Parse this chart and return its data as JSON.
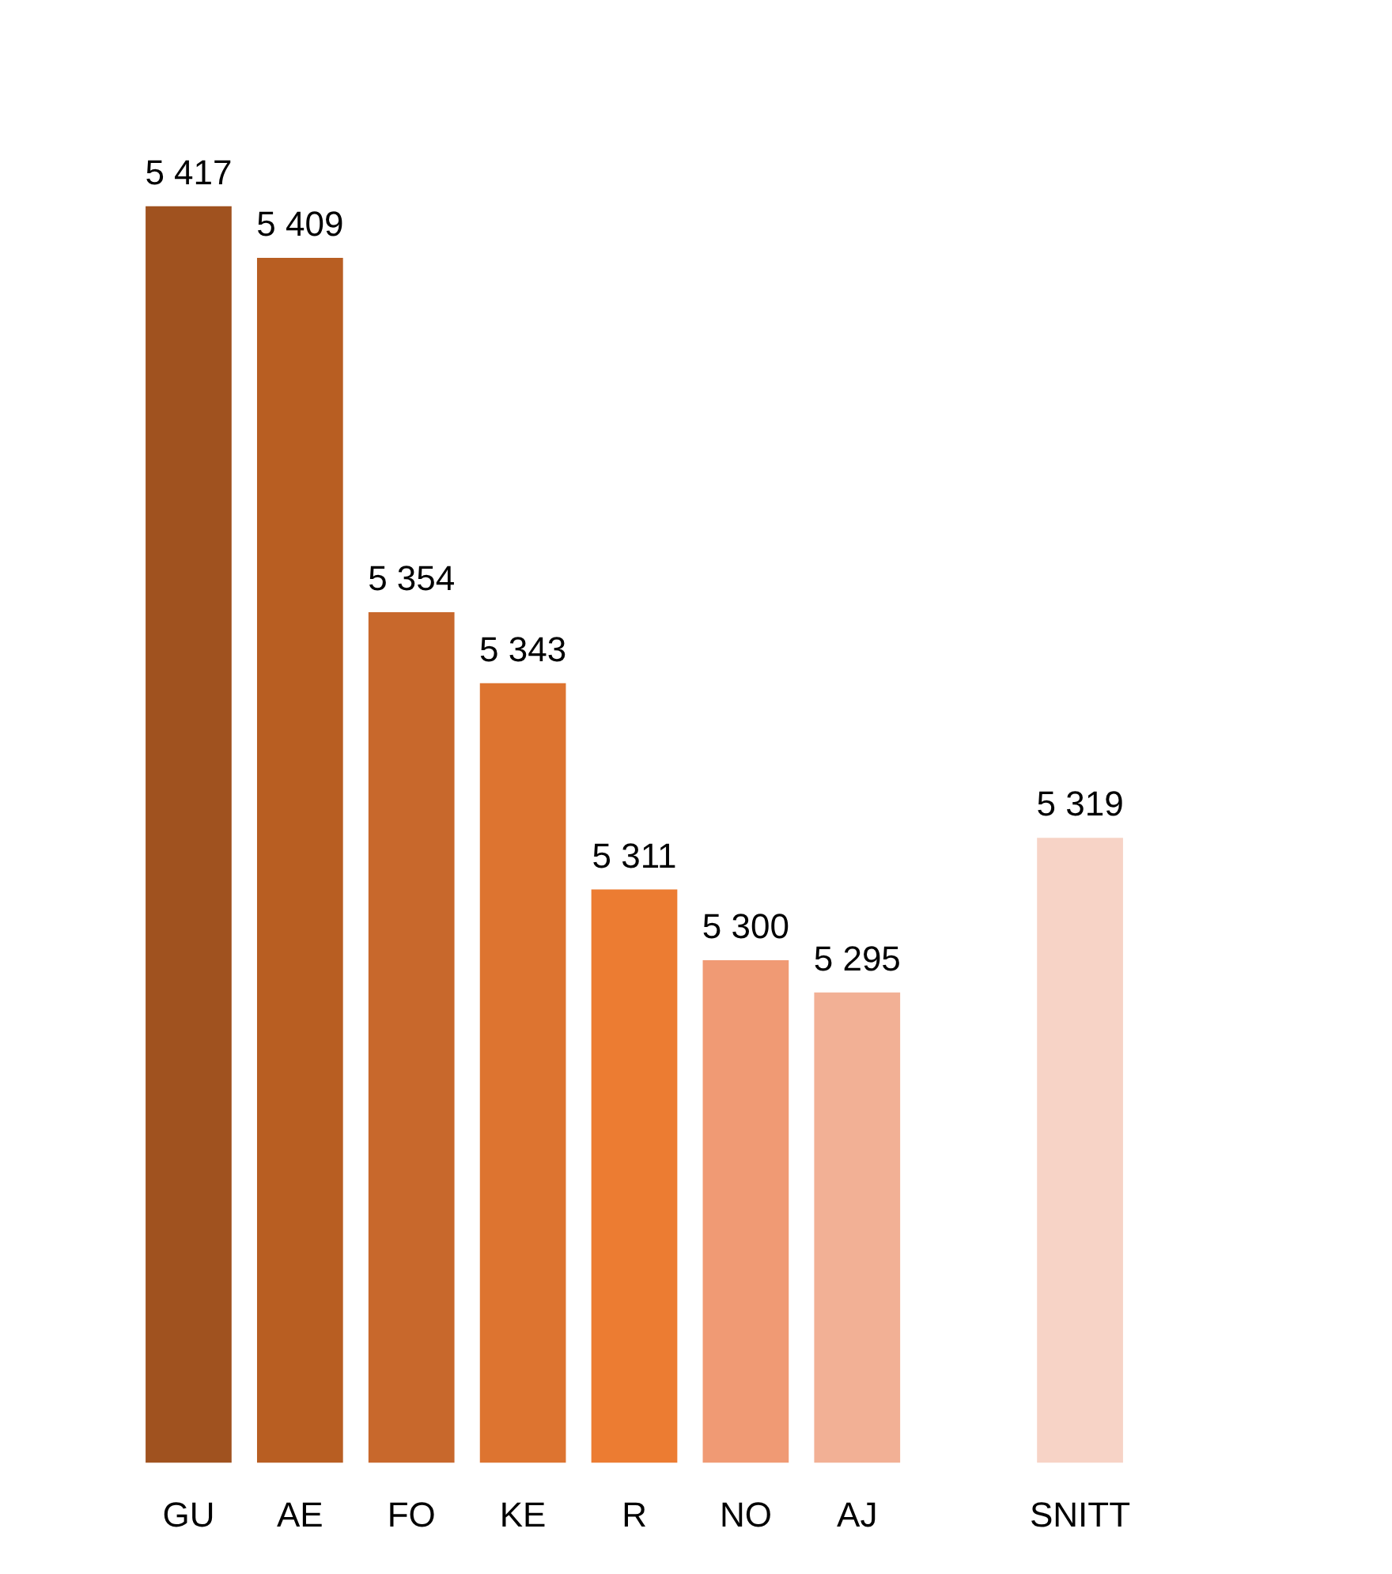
{
  "chart_data": {
    "type": "bar",
    "categories": [
      "GU",
      "AE",
      "FO",
      "KE",
      "R",
      "NO",
      "AJ",
      null,
      "SNITT"
    ],
    "values": [
      5417,
      5409,
      5354,
      5343,
      5311,
      5300,
      5295,
      null,
      5319
    ],
    "value_labels": [
      "5 417",
      "5 409",
      "5 354",
      "5 343",
      "5 311",
      "5 300",
      "5 295",
      null,
      "5 319"
    ],
    "colors": [
      "#a0521f",
      "#b85e22",
      "#c8682c",
      "#dd7430",
      "#ec7c32",
      "#f09a74",
      "#f2b095",
      null,
      "#f7d3c6"
    ],
    "tick_labels": "x"
  }
}
